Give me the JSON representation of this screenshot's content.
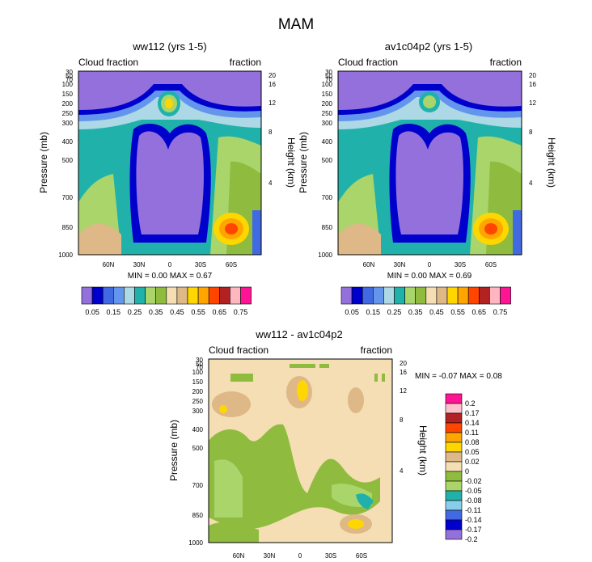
{
  "figure_title": "MAM",
  "chart_data": [
    {
      "type": "contour",
      "title": "ww112 (yrs 1-5)",
      "left_header": "Cloud fraction",
      "right_header": "fraction",
      "ylabel": "Pressure (mb)",
      "ylabel_right": "Height (km)",
      "y_ticks": [
        "30",
        "50",
        "70",
        "100",
        "150",
        "200",
        "250",
        "300",
        "400",
        "500",
        "700",
        "850",
        "1000"
      ],
      "y_ticks_right": [
        "20",
        "16",
        "12",
        "8",
        "4"
      ],
      "x_ticks": [
        "60N",
        "30N",
        "0",
        "30S",
        "60S"
      ],
      "min_text": "MIN =   0.00   MAX =   0.67",
      "colorbar_labels": [
        "0.05",
        "0.15",
        "0.25",
        "0.35",
        "0.45",
        "0.55",
        "0.65",
        "0.75"
      ]
    },
    {
      "type": "contour",
      "title": "av1c04p2 (yrs 1-5)",
      "left_header": "Cloud fraction",
      "right_header": "fraction",
      "ylabel": "Pressure (mb)",
      "ylabel_right": "Height (km)",
      "y_ticks": [
        "30",
        "50",
        "70",
        "100",
        "150",
        "200",
        "250",
        "300",
        "400",
        "500",
        "700",
        "850",
        "1000"
      ],
      "y_ticks_right": [
        "20",
        "16",
        "12",
        "8",
        "4"
      ],
      "x_ticks": [
        "60N",
        "30N",
        "0",
        "30S",
        "60S"
      ],
      "min_text": "MIN =   0.00   MAX =   0.69",
      "colorbar_labels": [
        "0.05",
        "0.15",
        "0.25",
        "0.35",
        "0.45",
        "0.55",
        "0.65",
        "0.75"
      ]
    },
    {
      "type": "contour",
      "title": "ww112 - av1c04p2",
      "left_header": "Cloud fraction",
      "right_header": "fraction",
      "ylabel": "Pressure (mb)",
      "ylabel_right": "Height (km)",
      "y_ticks": [
        "30",
        "50",
        "70",
        "100",
        "150",
        "200",
        "250",
        "300",
        "400",
        "500",
        "700",
        "850",
        "1000"
      ],
      "y_ticks_right": [
        "20",
        "16",
        "12",
        "8",
        "4"
      ],
      "x_ticks": [
        "60N",
        "30N",
        "0",
        "30S",
        "60S"
      ],
      "min_text": "MIN =  -0.07   MAX =   0.08",
      "colorbar_labels": [
        "0.2",
        "0.17",
        "0.14",
        "0.11",
        "0.08",
        "0.05",
        "0.02",
        "0",
        "-0.02",
        "-0.05",
        "-0.08",
        "-0.11",
        "-0.14",
        "-0.17",
        "-0.2"
      ]
    }
  ],
  "colors": {
    "seq": [
      "#9370db",
      "#0000cd",
      "#4169e1",
      "#6495ed",
      "#add8e6",
      "#20b2aa",
      "#a9d56b",
      "#8fbc3f",
      "#f5deb3",
      "#deb887",
      "#ffd700",
      "#ffa500",
      "#ff4500",
      "#b22222",
      "#ffb6c1",
      "#ff1493"
    ],
    "diff": [
      "#ff1493",
      "#ffc0cb",
      "#b22222",
      "#ff4500",
      "#ffa500",
      "#ffd700",
      "#deb887",
      "#f5deb3",
      "#8fbc3f",
      "#a9d56b",
      "#20b2aa",
      "#87ceeb",
      "#4169e1",
      "#0000cd",
      "#9370db"
    ]
  }
}
